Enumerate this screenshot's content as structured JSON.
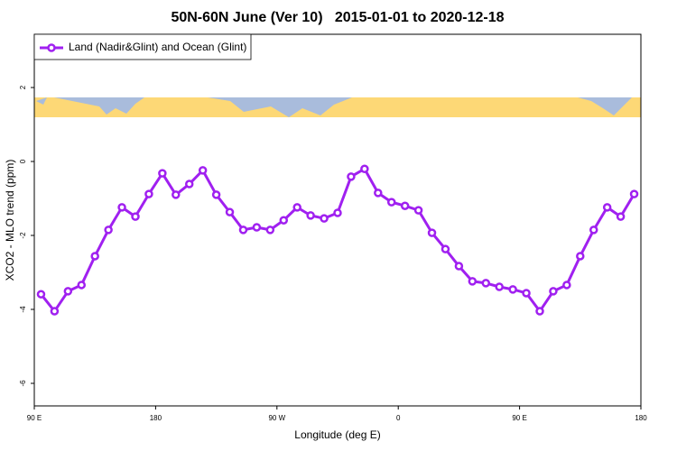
{
  "chart_data": {
    "type": "line",
    "title": "50N-60N June (Ver 10)   2015-01-01 to 2020-12-18",
    "x_label": "Longitude (deg E)",
    "y_label": "XCO2 - MLO trend (ppm)",
    "x": [
      95,
      105,
      115,
      125,
      135,
      145,
      155,
      165,
      175,
      185,
      195,
      205,
      215,
      225,
      235,
      245,
      255,
      265,
      275,
      285,
      295,
      305,
      315,
      325,
      335,
      345,
      355,
      365,
      375,
      385,
      395,
      405,
      415,
      425,
      435,
      445,
      455,
      465,
      475,
      485,
      495,
      505,
      515,
      525,
      535
    ],
    "series": [
      {
        "name": "Land (Nadir&Glint) and Ocean (Glint)",
        "color": "#a020f0",
        "values": [
          -3.59,
          -4.05,
          -3.51,
          -3.34,
          -2.56,
          -1.85,
          -1.24,
          -1.49,
          -0.88,
          -0.32,
          -0.9,
          -0.61,
          -0.24,
          -0.9,
          -1.37,
          -1.85,
          -1.78,
          -1.85,
          -1.59,
          -1.24,
          -1.46,
          -1.54,
          -1.39,
          -0.41,
          -0.2,
          -0.85,
          -1.1,
          -1.2,
          -1.32,
          -1.93,
          -2.37,
          -2.83,
          -3.24,
          -3.29,
          -3.39,
          -3.46,
          -3.56,
          -4.05,
          -3.51,
          -3.34,
          -2.56,
          -1.85,
          -1.24,
          -1.49,
          -0.88
        ]
      }
    ],
    "xlim": [
      90,
      540
    ],
    "xticks": [
      {
        "value": 90,
        "label": "90 E"
      },
      180,
      {
        "value": 270,
        "label": "90 W"
      },
      {
        "value": 360,
        "label": "0"
      },
      {
        "value": 450,
        "label": "90 E"
      },
      {
        "value": 540,
        "label": "180"
      }
    ],
    "ylim": [
      -6.61,
      3.44
    ],
    "yticks": [
      2,
      0,
      -2,
      -4,
      -6
    ],
    "legend": "top-left"
  }
}
